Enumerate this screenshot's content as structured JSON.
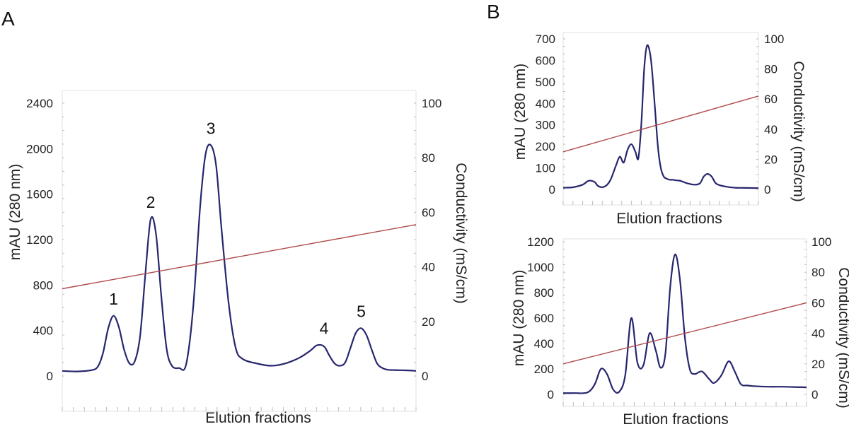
{
  "panels": {
    "A": "A",
    "B": "B"
  },
  "chart_data": [
    {
      "id": "chart-a",
      "panel": "A",
      "type": "line",
      "xlabel": "Elution fractions",
      "ylabel": "mAU (280 nm)",
      "y2label": "Conductivity (mS/cm)",
      "ylim": [
        0,
        2400
      ],
      "yticks": [
        0,
        400,
        800,
        1200,
        1600,
        2000,
        2400
      ],
      "y2lim": [
        0,
        100
      ],
      "y2ticks": [
        0,
        20,
        40,
        60,
        80,
        100
      ],
      "xlim": [
        0,
        100
      ],
      "series": [
        {
          "axis": "left",
          "color": "#26266e",
          "x": [
            0,
            4,
            8,
            10,
            11.5,
            13,
            14.5,
            16,
            17.5,
            19,
            20.5,
            22,
            23.5,
            25,
            26.5,
            28,
            29.5,
            31,
            33,
            35,
            37,
            39,
            40.5,
            42,
            43.5,
            45,
            47,
            49,
            51,
            55,
            59,
            63,
            67,
            70,
            72,
            74,
            75.5,
            77,
            78.5,
            80,
            81.5,
            83,
            84.5,
            86,
            87.5,
            89,
            90.5,
            92,
            94,
            97,
            100
          ],
          "y": [
            45,
            40,
            50,
            80,
            200,
            420,
            530,
            430,
            230,
            110,
            130,
            350,
            900,
            1380,
            1250,
            700,
            240,
            90,
            70,
            100,
            600,
            1500,
            1950,
            2030,
            1850,
            1300,
            650,
            250,
            150,
            110,
            90,
            110,
            160,
            220,
            270,
            260,
            180,
            110,
            90,
            120,
            250,
            380,
            420,
            360,
            230,
            110,
            70,
            55,
            52,
            50,
            45
          ]
        },
        {
          "axis": "right",
          "color": "#b04a4a",
          "x": [
            0,
            100
          ],
          "y": [
            32,
            55.5
          ]
        }
      ],
      "annotations": [
        {
          "label": "1",
          "x": 14.5,
          "y": 530
        },
        {
          "label": "2",
          "x": 25,
          "y": 1380
        },
        {
          "label": "3",
          "x": 42,
          "y": 2030
        },
        {
          "label": "4",
          "x": 74,
          "y": 270
        },
        {
          "label": "5",
          "x": 84.5,
          "y": 420
        }
      ]
    },
    {
      "id": "chart-b1",
      "panel": "B",
      "type": "line",
      "xlabel": "Elution fractions",
      "ylabel": "mAU (280 nm)",
      "y2label": "Conductivity (mS/cm)",
      "ylim": [
        0,
        700
      ],
      "yticks": [
        0,
        100,
        200,
        300,
        400,
        500,
        600,
        700
      ],
      "y2lim": [
        0,
        100
      ],
      "y2ticks": [
        0,
        20,
        40,
        60,
        80,
        100
      ],
      "xlim": [
        0,
        100
      ],
      "series": [
        {
          "axis": "left",
          "color": "#3333c0",
          "x": [
            0,
            5,
            10,
            13,
            16,
            18,
            21,
            24,
            27,
            29,
            31,
            33,
            35,
            37,
            38.5,
            40,
            41.5,
            43,
            45,
            47,
            48.5,
            50,
            51.5,
            53,
            54.5,
            56,
            58,
            60,
            63,
            67,
            70,
            72,
            74,
            76,
            78,
            80,
            84,
            88,
            93,
            100
          ],
          "y": [
            8,
            10,
            22,
            40,
            35,
            15,
            12,
            40,
            110,
            152,
            125,
            185,
            210,
            175,
            145,
            300,
            560,
            670,
            600,
            380,
            200,
            100,
            60,
            50,
            45,
            45,
            42,
            40,
            30,
            22,
            28,
            60,
            72,
            60,
            30,
            20,
            12,
            8,
            7,
            6
          ]
        },
        {
          "axis": "right",
          "color": "#b04a4a",
          "x": [
            0,
            100
          ],
          "y": [
            25,
            62
          ]
        }
      ]
    },
    {
      "id": "chart-b2",
      "panel": "B",
      "type": "line",
      "xlabel": "Elution fractions",
      "ylabel": "mAU (280 nm)",
      "y2label": "Conductivity (mS/cm)",
      "ylim": [
        0,
        1200
      ],
      "yticks": [
        0,
        200,
        400,
        600,
        800,
        1000,
        1200
      ],
      "y2lim": [
        0,
        100
      ],
      "y2ticks": [
        0,
        20,
        40,
        60,
        80,
        100
      ],
      "xlim": [
        0,
        100
      ],
      "series": [
        {
          "axis": "left",
          "color": "#26266e",
          "x": [
            0,
            5,
            10,
            13,
            15.5,
            18,
            20.5,
            23,
            25.5,
            28,
            30.5,
            33,
            35.5,
            38,
            40,
            42,
            44,
            46,
            48,
            50,
            52,
            54,
            57,
            60,
            62,
            65,
            68,
            70.5,
            73,
            75.5,
            78,
            81,
            85,
            90,
            95,
            100
          ],
          "y": [
            10,
            10,
            15,
            80,
            200,
            160,
            40,
            20,
            150,
            600,
            250,
            230,
            480,
            350,
            210,
            320,
            850,
            1100,
            900,
            450,
            200,
            160,
            180,
            120,
            90,
            150,
            260,
            180,
            80,
            70,
            65,
            62,
            60,
            60,
            58,
            55
          ]
        },
        {
          "axis": "right",
          "color": "#b04a4a",
          "x": [
            0,
            100
          ],
          "y": [
            20,
            60
          ]
        }
      ]
    }
  ]
}
